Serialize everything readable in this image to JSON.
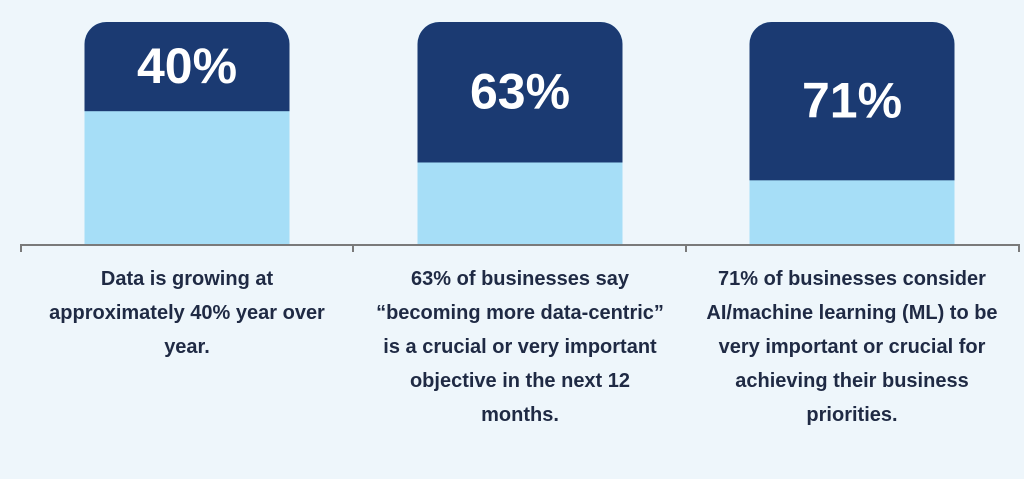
{
  "chart_data": {
    "type": "bar",
    "categories": [
      "Data is growing at approximately 40% year over year.",
      "63% of businesses say “becoming more data-centric” is a crucial or very important objective in the next 12 months.",
      "71% of businesses consider AI/machine learning (ML) to be very important or crucial for achieving their business priorities."
    ],
    "values": [
      40,
      63,
      71
    ],
    "value_labels": [
      "40%",
      "63%",
      "71%"
    ],
    "ylim": [
      0,
      100
    ],
    "color": "#1b3a72",
    "track_color": "#a6def7"
  }
}
